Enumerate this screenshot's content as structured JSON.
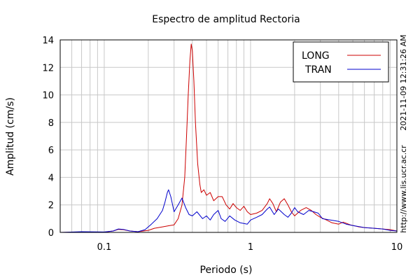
{
  "chart_data": {
    "type": "line",
    "title": "Espectro de amplitud Rectoria",
    "xlabel": "Periodo (s)",
    "ylabel": "Amplitud (cm/s)",
    "xscale": "log",
    "xlim": [
      0.05,
      10
    ],
    "ylim": [
      0,
      14
    ],
    "x_ticks": [
      {
        "value": 0.1,
        "label": "0.1"
      },
      {
        "value": 1,
        "label": "1"
      },
      {
        "value": 10,
        "label": "10"
      }
    ],
    "y_ticks": [
      {
        "value": 0,
        "label": "0"
      },
      {
        "value": 2,
        "label": "2"
      },
      {
        "value": 4,
        "label": "4"
      },
      {
        "value": 6,
        "label": "6"
      },
      {
        "value": 8,
        "label": "8"
      },
      {
        "value": 10,
        "label": "10"
      },
      {
        "value": 12,
        "label": "12"
      },
      {
        "value": 14,
        "label": "14"
      }
    ],
    "grid": true,
    "legend_position": "top-right",
    "timestamp_text": "2021-11-09 12:31:26 AM",
    "url_text": "http://www.lis.ucr.ac.cr",
    "series": [
      {
        "name": "LONG",
        "color": "#cc0000",
        "points": [
          [
            0.05,
            0.0
          ],
          [
            0.07,
            0.02
          ],
          [
            0.1,
            0.02
          ],
          [
            0.115,
            0.1
          ],
          [
            0.125,
            0.22
          ],
          [
            0.135,
            0.2
          ],
          [
            0.15,
            0.1
          ],
          [
            0.17,
            0.05
          ],
          [
            0.2,
            0.15
          ],
          [
            0.22,
            0.3
          ],
          [
            0.25,
            0.4
          ],
          [
            0.28,
            0.5
          ],
          [
            0.3,
            0.55
          ],
          [
            0.32,
            1.0
          ],
          [
            0.34,
            2.0
          ],
          [
            0.355,
            4.0
          ],
          [
            0.365,
            7.0
          ],
          [
            0.375,
            10.0
          ],
          [
            0.385,
            12.5
          ],
          [
            0.393,
            13.7
          ],
          [
            0.4,
            13.2
          ],
          [
            0.41,
            11.0
          ],
          [
            0.42,
            8.0
          ],
          [
            0.435,
            5.0
          ],
          [
            0.45,
            3.5
          ],
          [
            0.46,
            2.9
          ],
          [
            0.48,
            3.1
          ],
          [
            0.5,
            2.7
          ],
          [
            0.53,
            2.9
          ],
          [
            0.56,
            2.3
          ],
          [
            0.6,
            2.6
          ],
          [
            0.64,
            2.6
          ],
          [
            0.68,
            2.0
          ],
          [
            0.72,
            1.7
          ],
          [
            0.76,
            2.1
          ],
          [
            0.8,
            1.8
          ],
          [
            0.85,
            1.6
          ],
          [
            0.9,
            1.9
          ],
          [
            0.95,
            1.5
          ],
          [
            1.0,
            1.3
          ],
          [
            1.1,
            1.4
          ],
          [
            1.2,
            1.6
          ],
          [
            1.3,
            2.1
          ],
          [
            1.35,
            2.45
          ],
          [
            1.42,
            2.1
          ],
          [
            1.5,
            1.5
          ],
          [
            1.6,
            2.2
          ],
          [
            1.7,
            2.45
          ],
          [
            1.8,
            2.0
          ],
          [
            1.9,
            1.5
          ],
          [
            2.0,
            1.2
          ],
          [
            2.2,
            1.6
          ],
          [
            2.4,
            1.8
          ],
          [
            2.6,
            1.6
          ],
          [
            2.8,
            1.3
          ],
          [
            3.0,
            1.1
          ],
          [
            3.3,
            0.9
          ],
          [
            3.6,
            0.7
          ],
          [
            4.0,
            0.6
          ],
          [
            4.3,
            0.75
          ],
          [
            4.8,
            0.55
          ],
          [
            5.5,
            0.4
          ],
          [
            6.0,
            0.35
          ],
          [
            7.0,
            0.3
          ],
          [
            8.0,
            0.25
          ],
          [
            9.0,
            0.2
          ],
          [
            10.0,
            0.1
          ]
        ]
      },
      {
        "name": "TRAN",
        "color": "#0000cc",
        "points": [
          [
            0.05,
            0.0
          ],
          [
            0.07,
            0.05
          ],
          [
            0.1,
            0.03
          ],
          [
            0.115,
            0.1
          ],
          [
            0.125,
            0.25
          ],
          [
            0.135,
            0.22
          ],
          [
            0.15,
            0.1
          ],
          [
            0.17,
            0.05
          ],
          [
            0.19,
            0.2
          ],
          [
            0.21,
            0.6
          ],
          [
            0.23,
            1.0
          ],
          [
            0.25,
            1.6
          ],
          [
            0.26,
            2.2
          ],
          [
            0.27,
            2.9
          ],
          [
            0.275,
            3.1
          ],
          [
            0.285,
            2.6
          ],
          [
            0.3,
            1.5
          ],
          [
            0.32,
            2.0
          ],
          [
            0.34,
            2.5
          ],
          [
            0.36,
            1.8
          ],
          [
            0.38,
            1.3
          ],
          [
            0.4,
            1.2
          ],
          [
            0.43,
            1.5
          ],
          [
            0.47,
            1.0
          ],
          [
            0.5,
            1.2
          ],
          [
            0.53,
            0.9
          ],
          [
            0.56,
            1.3
          ],
          [
            0.6,
            1.6
          ],
          [
            0.63,
            1.0
          ],
          [
            0.67,
            0.8
          ],
          [
            0.72,
            1.2
          ],
          [
            0.78,
            0.9
          ],
          [
            0.85,
            0.7
          ],
          [
            0.95,
            0.6
          ],
          [
            1.0,
            0.9
          ],
          [
            1.1,
            1.1
          ],
          [
            1.2,
            1.3
          ],
          [
            1.3,
            1.7
          ],
          [
            1.35,
            1.85
          ],
          [
            1.45,
            1.3
          ],
          [
            1.55,
            1.7
          ],
          [
            1.7,
            1.3
          ],
          [
            1.8,
            1.1
          ],
          [
            1.9,
            1.4
          ],
          [
            2.0,
            1.8
          ],
          [
            2.1,
            1.5
          ],
          [
            2.3,
            1.3
          ],
          [
            2.5,
            1.6
          ],
          [
            2.7,
            1.5
          ],
          [
            2.9,
            1.4
          ],
          [
            3.1,
            1.0
          ],
          [
            3.5,
            0.9
          ],
          [
            4.0,
            0.8
          ],
          [
            4.5,
            0.6
          ],
          [
            5.0,
            0.5
          ],
          [
            6.0,
            0.35
          ],
          [
            7.0,
            0.3
          ],
          [
            8.0,
            0.25
          ],
          [
            9.0,
            0.15
          ],
          [
            10.0,
            0.1
          ]
        ]
      }
    ]
  }
}
